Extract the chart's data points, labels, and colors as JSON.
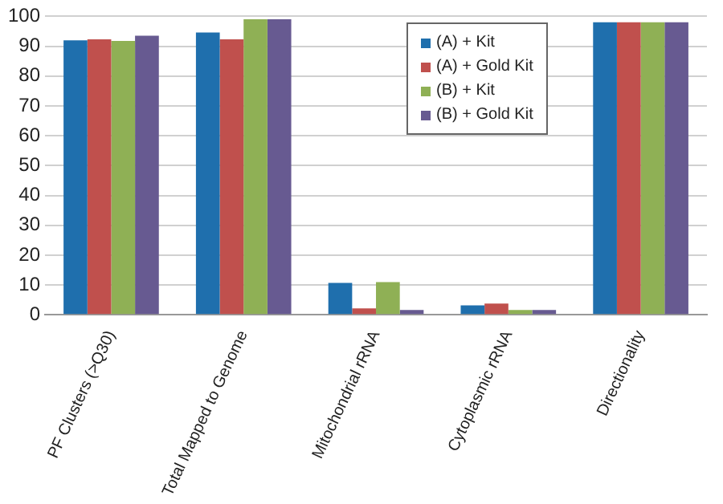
{
  "chart_data": {
    "type": "bar",
    "categories": [
      "PF Clusters (>Q30)",
      "Total Mapped to Genome",
      "Mitochondrial rRNA",
      "Cytoplasmic rRNA",
      "Directionality"
    ],
    "series": [
      {
        "name": "(A) + Kit",
        "color": "#1f6fad",
        "values": [
          92,
          94.6,
          10.7,
          3.2,
          98
        ]
      },
      {
        "name": "(A) + Gold Kit",
        "color": "#c0504d",
        "values": [
          92.3,
          92.3,
          2.2,
          3.8,
          98
        ]
      },
      {
        "name": "(B) + Kit",
        "color": "#8fb055",
        "values": [
          91.8,
          99,
          11,
          1.6,
          98
        ]
      },
      {
        "name": "(B) + Gold Kit",
        "color": "#675a91",
        "values": [
          93.5,
          99,
          1.6,
          1.6,
          98
        ]
      }
    ],
    "ylim": [
      0,
      100
    ],
    "yticks": [
      0,
      10,
      20,
      30,
      40,
      50,
      60,
      70,
      80,
      90,
      100
    ],
    "grid": "y",
    "legend": "top right"
  }
}
